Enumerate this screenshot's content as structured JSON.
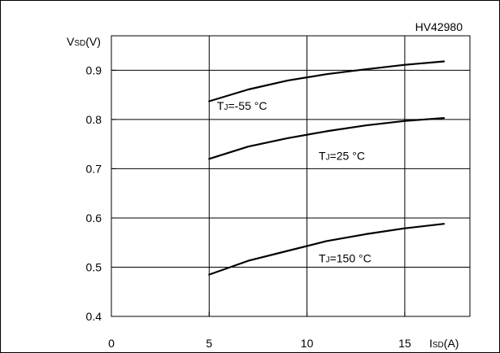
{
  "chart_data": {
    "type": "line",
    "figure_code": "HV42980",
    "y_axis_label": {
      "main": "V",
      "sub": "SD",
      "unit": "(V)"
    },
    "x_axis_label": {
      "main": "I",
      "sub": "SD",
      "unit": "(A)"
    },
    "xlim": [
      0,
      18.33
    ],
    "ylim": [
      0.4,
      0.97
    ],
    "x_ticks": [
      0,
      5,
      10,
      15
    ],
    "y_ticks": [
      0.4,
      0.5,
      0.6,
      0.7,
      0.8,
      0.9
    ],
    "x_tick_labels": [
      "0",
      "5",
      "10",
      "15"
    ],
    "y_tick_labels": [
      "0.4",
      "0.5",
      "0.6",
      "0.7",
      "0.8",
      "0.9"
    ],
    "grid": true,
    "series": [
      {
        "label": {
          "main": "T",
          "sub": "J",
          "rest": "=-55 °C"
        },
        "label_at": [
          5.4,
          0.82
        ],
        "x": [
          5,
          7,
          9,
          11,
          13,
          15,
          17
        ],
        "y": [
          0.837,
          0.861,
          0.879,
          0.892,
          0.902,
          0.911,
          0.918
        ]
      },
      {
        "label": {
          "main": "T",
          "sub": "J",
          "rest": "=25 °C"
        },
        "label_at": [
          10.6,
          0.718
        ],
        "x": [
          5,
          7,
          9,
          11,
          13,
          15,
          17
        ],
        "y": [
          0.72,
          0.745,
          0.762,
          0.776,
          0.788,
          0.797,
          0.803
        ]
      },
      {
        "label": {
          "main": "T",
          "sub": "J",
          "rest": "=150 °C"
        },
        "label_at": [
          10.6,
          0.51
        ],
        "x": [
          5,
          7,
          9,
          11,
          13,
          15,
          17
        ],
        "y": [
          0.485,
          0.513,
          0.533,
          0.553,
          0.567,
          0.579,
          0.588
        ]
      }
    ]
  }
}
